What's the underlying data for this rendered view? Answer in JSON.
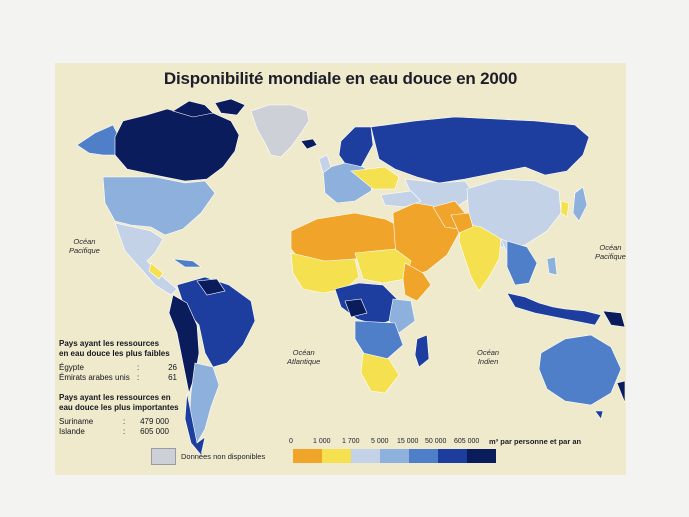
{
  "title": "Disponibilité mondiale en eau douce en 2000",
  "oceans": {
    "pacific_left": [
      "Océan",
      "Pacifique"
    ],
    "pacific_right": [
      "Océan",
      "Pacifique"
    ],
    "atlantic": [
      "Océan",
      "Atlantique"
    ],
    "indian": [
      "Océan",
      "Indien"
    ]
  },
  "lowest": {
    "heading": [
      "Pays ayant les ressources",
      "en eau douce les plus faibles"
    ],
    "items": [
      {
        "country": "Égypte",
        "value": "26"
      },
      {
        "country": "Émirats arabes unis",
        "value": "61"
      }
    ]
  },
  "highest": {
    "heading": [
      "Pays ayant les ressources en",
      "eau douce les plus importantes"
    ],
    "items": [
      {
        "country": "Suriname",
        "value": "479 000"
      },
      {
        "country": "Islande",
        "value": "605 000"
      }
    ]
  },
  "legend": {
    "ticks": [
      "0",
      "1 000",
      "1 700",
      "5 000",
      "15 000",
      "50 000",
      "605 000"
    ],
    "unit": "m³ par personne et par an",
    "colors": [
      "#f0a52a",
      "#f5e150",
      "#c4d2e8",
      "#8eb0dc",
      "#4f7fc9",
      "#1d3e9e",
      "#0b1c5c"
    ],
    "nodata_label": "Données non disponibles",
    "nodata_color": "#cdd0d6"
  },
  "colors": {
    "background": "#eeeacb",
    "page": "#f3f3f1"
  }
}
